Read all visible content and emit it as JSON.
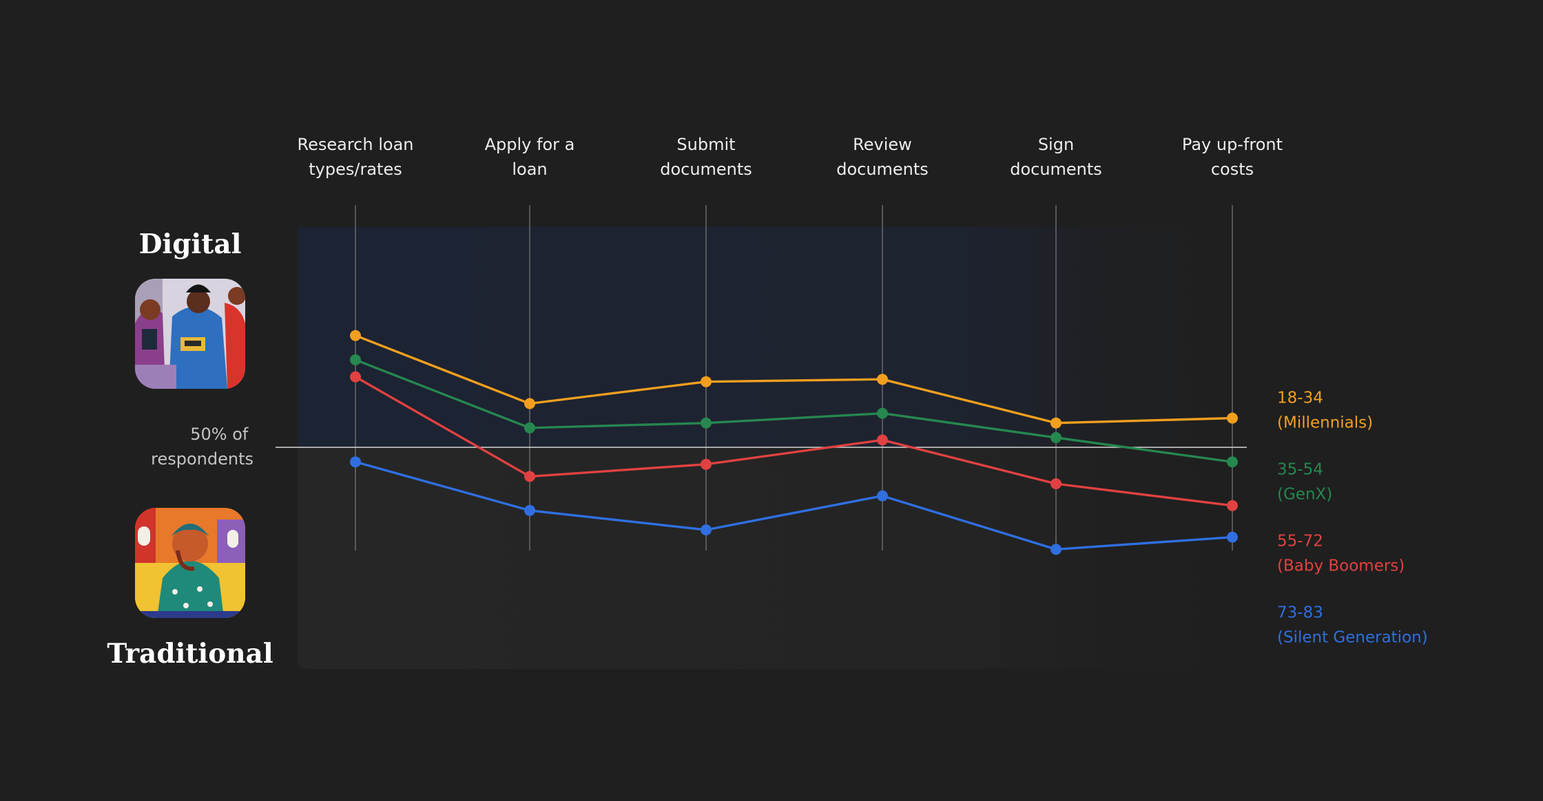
{
  "poles": {
    "top_label": "Digital",
    "bottom_label": "Traditional"
  },
  "reference": {
    "label_line1": "50% of",
    "label_line2": "respondents"
  },
  "chart_data": {
    "type": "line",
    "categories": [
      [
        "Research loan",
        "types/rates"
      ],
      [
        "Apply for a",
        "loan"
      ],
      [
        "Submit",
        "documents"
      ],
      [
        "Review",
        "documents"
      ],
      [
        "Sign",
        "documents"
      ],
      [
        "Pay up-front",
        "costs"
      ]
    ],
    "ylabel": "",
    "reference_value": 50,
    "series": [
      {
        "name": "18-34",
        "sublabel": "(Millennials)",
        "color": "#F29F1F",
        "values": [
          73,
          59,
          63.5,
          64,
          55,
          56
        ]
      },
      {
        "name": "35-54",
        "sublabel": "(GenX)",
        "color": "#26874F",
        "values": [
          68,
          54,
          55,
          57,
          52,
          47
        ]
      },
      {
        "name": "55-72",
        "sublabel": "(Baby Boomers)",
        "color": "#E04141",
        "values": [
          64.5,
          44,
          46.5,
          51.5,
          42.5,
          38
        ]
      },
      {
        "name": "73-83",
        "sublabel": "(Silent Generation)",
        "color": "#2F6FE0",
        "values": [
          47,
          37,
          33,
          40,
          29,
          31.5
        ]
      }
    ]
  },
  "colors": {
    "background": "#1f1f1f",
    "digital_zone": "#1d2331",
    "traditional_zone": "#262626"
  },
  "icons": {
    "top_image": "people-using-phones-and-cards-illustration",
    "bottom_image": "person-in-thought-illustration"
  }
}
